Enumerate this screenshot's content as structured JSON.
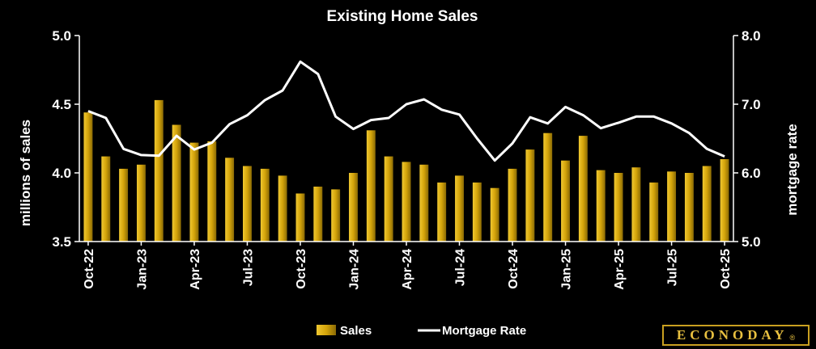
{
  "chart_data": {
    "type": "bar",
    "title": "Existing Home Sales",
    "ylabel": "millions of sales",
    "y2label": "mortgage rate",
    "ylim": [
      3.5,
      5.0
    ],
    "yticks": [
      "3.5",
      "4.0",
      "4.5",
      "5.0"
    ],
    "y2lim": [
      5.0,
      8.0
    ],
    "y2ticks": [
      "5.0",
      "6.0",
      "7.0",
      "8.0"
    ],
    "categories": [
      "Oct-22",
      "Nov-22",
      "Dec-22",
      "Jan-23",
      "Feb-23",
      "Mar-23",
      "Apr-23",
      "May-23",
      "Jun-23",
      "Jul-23",
      "Aug-23",
      "Sep-23",
      "Oct-23",
      "Nov-23",
      "Dec-23",
      "Jan-24",
      "Feb-24",
      "Mar-24",
      "Apr-24",
      "May-24",
      "Jun-24",
      "Jul-24",
      "Aug-24",
      "Sep-24",
      "Oct-24",
      "Nov-24",
      "Dec-24",
      "Jan-25",
      "Feb-25",
      "Mar-25",
      "Apr-25",
      "May-25",
      "Jun-25",
      "Jul-25",
      "Aug-25",
      "Sep-25",
      "Oct-25"
    ],
    "xtick_labels": [
      "Oct-22",
      "Jan-23",
      "Apr-23",
      "Jul-23",
      "Oct-23",
      "Jan-24",
      "Apr-24",
      "Jul-24",
      "Oct-24",
      "Jan-25",
      "Apr-25",
      "Jul-25",
      "Oct-25"
    ],
    "series": [
      {
        "name": "Sales",
        "kind": "bar",
        "axis": "left",
        "color": "#d4a40a",
        "values": [
          4.44,
          4.12,
          4.03,
          4.06,
          4.53,
          4.35,
          4.22,
          4.23,
          4.11,
          4.05,
          4.03,
          3.98,
          3.85,
          3.9,
          3.88,
          4.0,
          4.31,
          4.12,
          4.08,
          4.06,
          3.93,
          3.98,
          3.93,
          3.89,
          4.03,
          4.17,
          4.29,
          4.09,
          4.27,
          4.02,
          4.0,
          4.04,
          3.93,
          4.01,
          4.0,
          4.05,
          4.1
        ]
      },
      {
        "name": "Mortgage Rate",
        "kind": "line",
        "axis": "right",
        "color": "#ffffff",
        "values": [
          6.9,
          6.8,
          6.35,
          6.26,
          6.25,
          6.54,
          6.34,
          6.44,
          6.71,
          6.84,
          7.06,
          7.2,
          7.62,
          7.44,
          6.82,
          6.64,
          6.77,
          6.8,
          7.0,
          7.07,
          6.92,
          6.85,
          6.5,
          6.18,
          6.43,
          6.81,
          6.72,
          6.96,
          6.84,
          6.65,
          6.73,
          6.82,
          6.82,
          6.72,
          6.58,
          6.35,
          6.24
        ]
      }
    ],
    "legend_position": "bottom",
    "grid": false
  },
  "logo": {
    "text": "ECONODAY",
    "mark": "®"
  }
}
